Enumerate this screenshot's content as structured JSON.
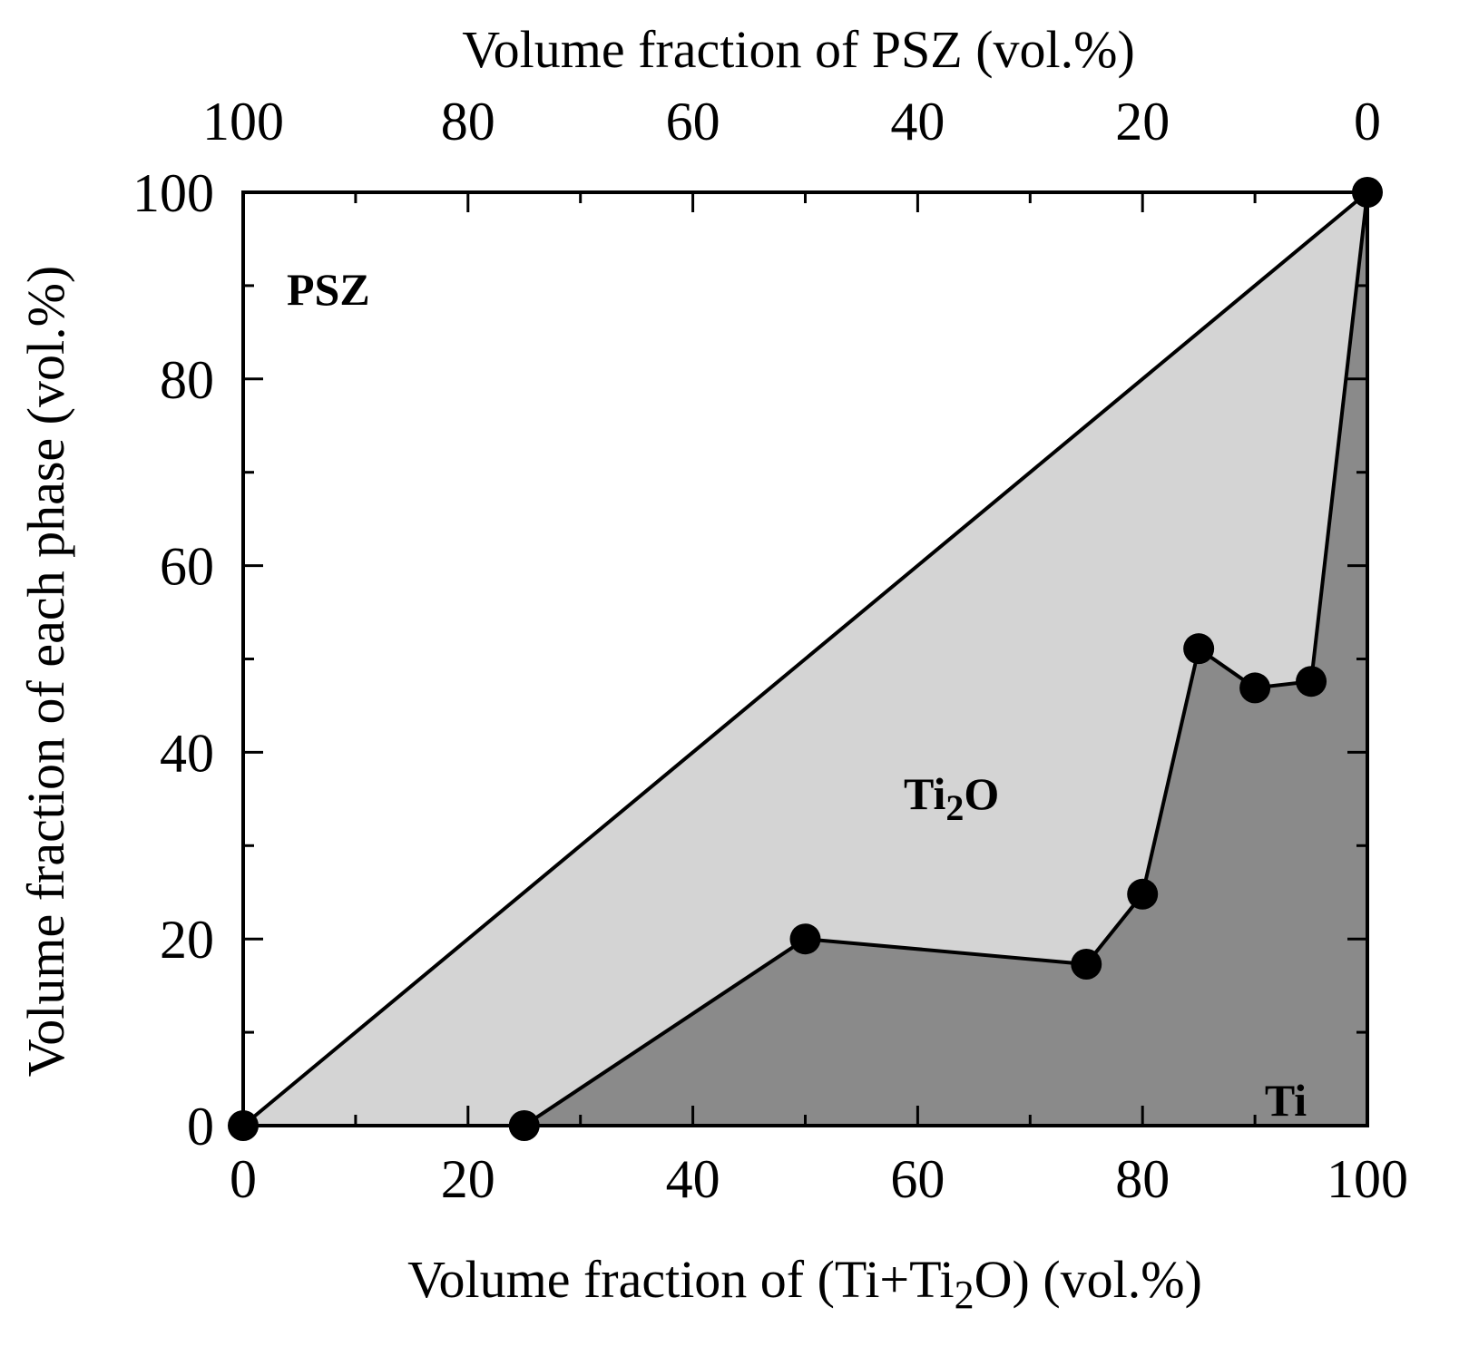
{
  "chart_data": {
    "type": "area",
    "x_axis_bottom": {
      "label": "Volume fraction of (Ti+Ti",
      "label_sub": "2",
      "label_tail": "O) (vol.%)",
      "range": [
        0,
        100
      ],
      "ticks": [
        "0",
        "20",
        "40",
        "60",
        "80",
        "100"
      ],
      "tick_values": [
        0,
        20,
        40,
        60,
        80,
        100
      ]
    },
    "x_axis_top": {
      "label": "Volume fraction of PSZ (vol.%)",
      "range": [
        100,
        0
      ],
      "ticks": [
        "100",
        "80",
        "60",
        "40",
        "20",
        "0"
      ],
      "tick_values": [
        100,
        80,
        60,
        40,
        20,
        0
      ]
    },
    "y_axis": {
      "label": "Volume fraction of each phase (vol.%)",
      "range": [
        0,
        100
      ],
      "ticks": [
        "0",
        "20",
        "40",
        "60",
        "80",
        "100"
      ],
      "tick_values": [
        0,
        20,
        40,
        60,
        80,
        100
      ]
    },
    "boundary_series": [
      {
        "role": "PSZ / Ti2O boundary",
        "x": [
          0,
          100
        ],
        "y": [
          0,
          100
        ]
      },
      {
        "role": "Ti2O / Ti boundary",
        "x": [
          25,
          50,
          75,
          80,
          85,
          90,
          95,
          100
        ],
        "y": [
          0,
          20,
          17.3,
          24.8,
          51.1,
          46.9,
          47.6,
          100
        ]
      }
    ],
    "markers": [
      {
        "x": 0,
        "y": 0
      },
      {
        "x": 100,
        "y": 100
      },
      {
        "x": 25,
        "y": 0
      },
      {
        "x": 50,
        "y": 20
      },
      {
        "x": 75,
        "y": 17.3
      },
      {
        "x": 80,
        "y": 24.8
      },
      {
        "x": 85,
        "y": 51.1
      },
      {
        "x": 90,
        "y": 46.9
      },
      {
        "x": 95,
        "y": 47.6
      }
    ],
    "regions": [
      {
        "label": "PSZ",
        "color": "#ffffff"
      },
      {
        "label": "Ti",
        "label_sub": "2",
        "label_tail": "O",
        "color": "#d4d4d4"
      },
      {
        "label": "Ti",
        "color": "#8a8a8a"
      }
    ],
    "grid": false,
    "legend": "none"
  }
}
